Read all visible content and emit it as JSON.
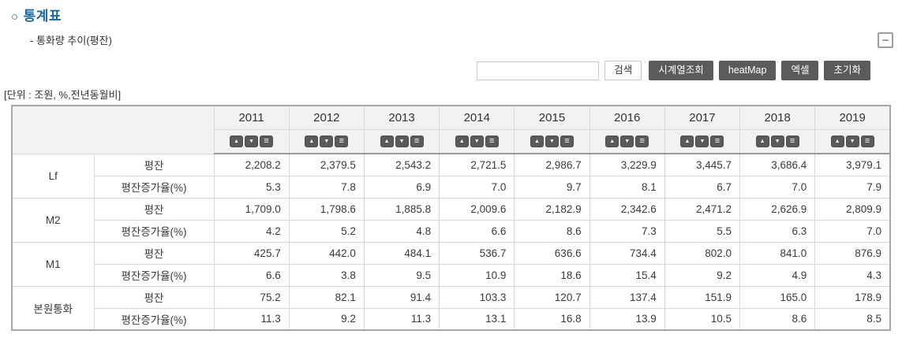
{
  "page": {
    "bullet": "○",
    "title": "통계표",
    "subtitle": "- 통화량 추이(평잔)",
    "unit_label": "[단위 : 조원, %,전년동월비]",
    "collapse_glyph": "−"
  },
  "toolbar": {
    "search_value": "",
    "search_button_label": "검색",
    "action_buttons": [
      "시계열조회",
      "heatMap",
      "엑셀",
      "초기화"
    ]
  },
  "colors": {
    "title_blue": "#17699e",
    "header_bg": "#f2f2f2",
    "dark_button_bg": "#5b5b5b",
    "outer_border": "#a7a7a7",
    "inner_border": "#d9d9d9"
  },
  "table": {
    "years": [
      "2011",
      "2012",
      "2013",
      "2014",
      "2015",
      "2016",
      "2017",
      "2018",
      "2019"
    ],
    "sort_icons": [
      "▲",
      "▼",
      "≡"
    ],
    "groups": [
      {
        "name": "Lf",
        "rows": [
          {
            "label": "평잔",
            "values": [
              "2,208.2",
              "2,379.5",
              "2,543.2",
              "2,721.5",
              "2,986.7",
              "3,229.9",
              "3,445.7",
              "3,686.4",
              "3,979.1"
            ]
          },
          {
            "label": "평잔증가율(%)",
            "values": [
              "5.3",
              "7.8",
              "6.9",
              "7.0",
              "9.7",
              "8.1",
              "6.7",
              "7.0",
              "7.9"
            ]
          }
        ]
      },
      {
        "name": "M2",
        "rows": [
          {
            "label": "평잔",
            "values": [
              "1,709.0",
              "1,798.6",
              "1,885.8",
              "2,009.6",
              "2,182.9",
              "2,342.6",
              "2,471.2",
              "2,626.9",
              "2,809.9"
            ]
          },
          {
            "label": "평잔증가율(%)",
            "values": [
              "4.2",
              "5.2",
              "4.8",
              "6.6",
              "8.6",
              "7.3",
              "5.5",
              "6.3",
              "7.0"
            ]
          }
        ]
      },
      {
        "name": "M1",
        "rows": [
          {
            "label": "평잔",
            "values": [
              "425.7",
              "442.0",
              "484.1",
              "536.7",
              "636.6",
              "734.4",
              "802.0",
              "841.0",
              "876.9"
            ]
          },
          {
            "label": "평잔증가율(%)",
            "values": [
              "6.6",
              "3.8",
              "9.5",
              "10.9",
              "18.6",
              "15.4",
              "9.2",
              "4.9",
              "4.3"
            ]
          }
        ]
      },
      {
        "name": "본원통화",
        "rows": [
          {
            "label": "평잔",
            "values": [
              "75.2",
              "82.1",
              "91.4",
              "103.3",
              "120.7",
              "137.4",
              "151.9",
              "165.0",
              "178.9"
            ]
          },
          {
            "label": "평잔증가율(%)",
            "values": [
              "11.3",
              "9.2",
              "11.3",
              "13.1",
              "16.8",
              "13.9",
              "10.5",
              "8.6",
              "8.5"
            ]
          }
        ]
      }
    ]
  }
}
